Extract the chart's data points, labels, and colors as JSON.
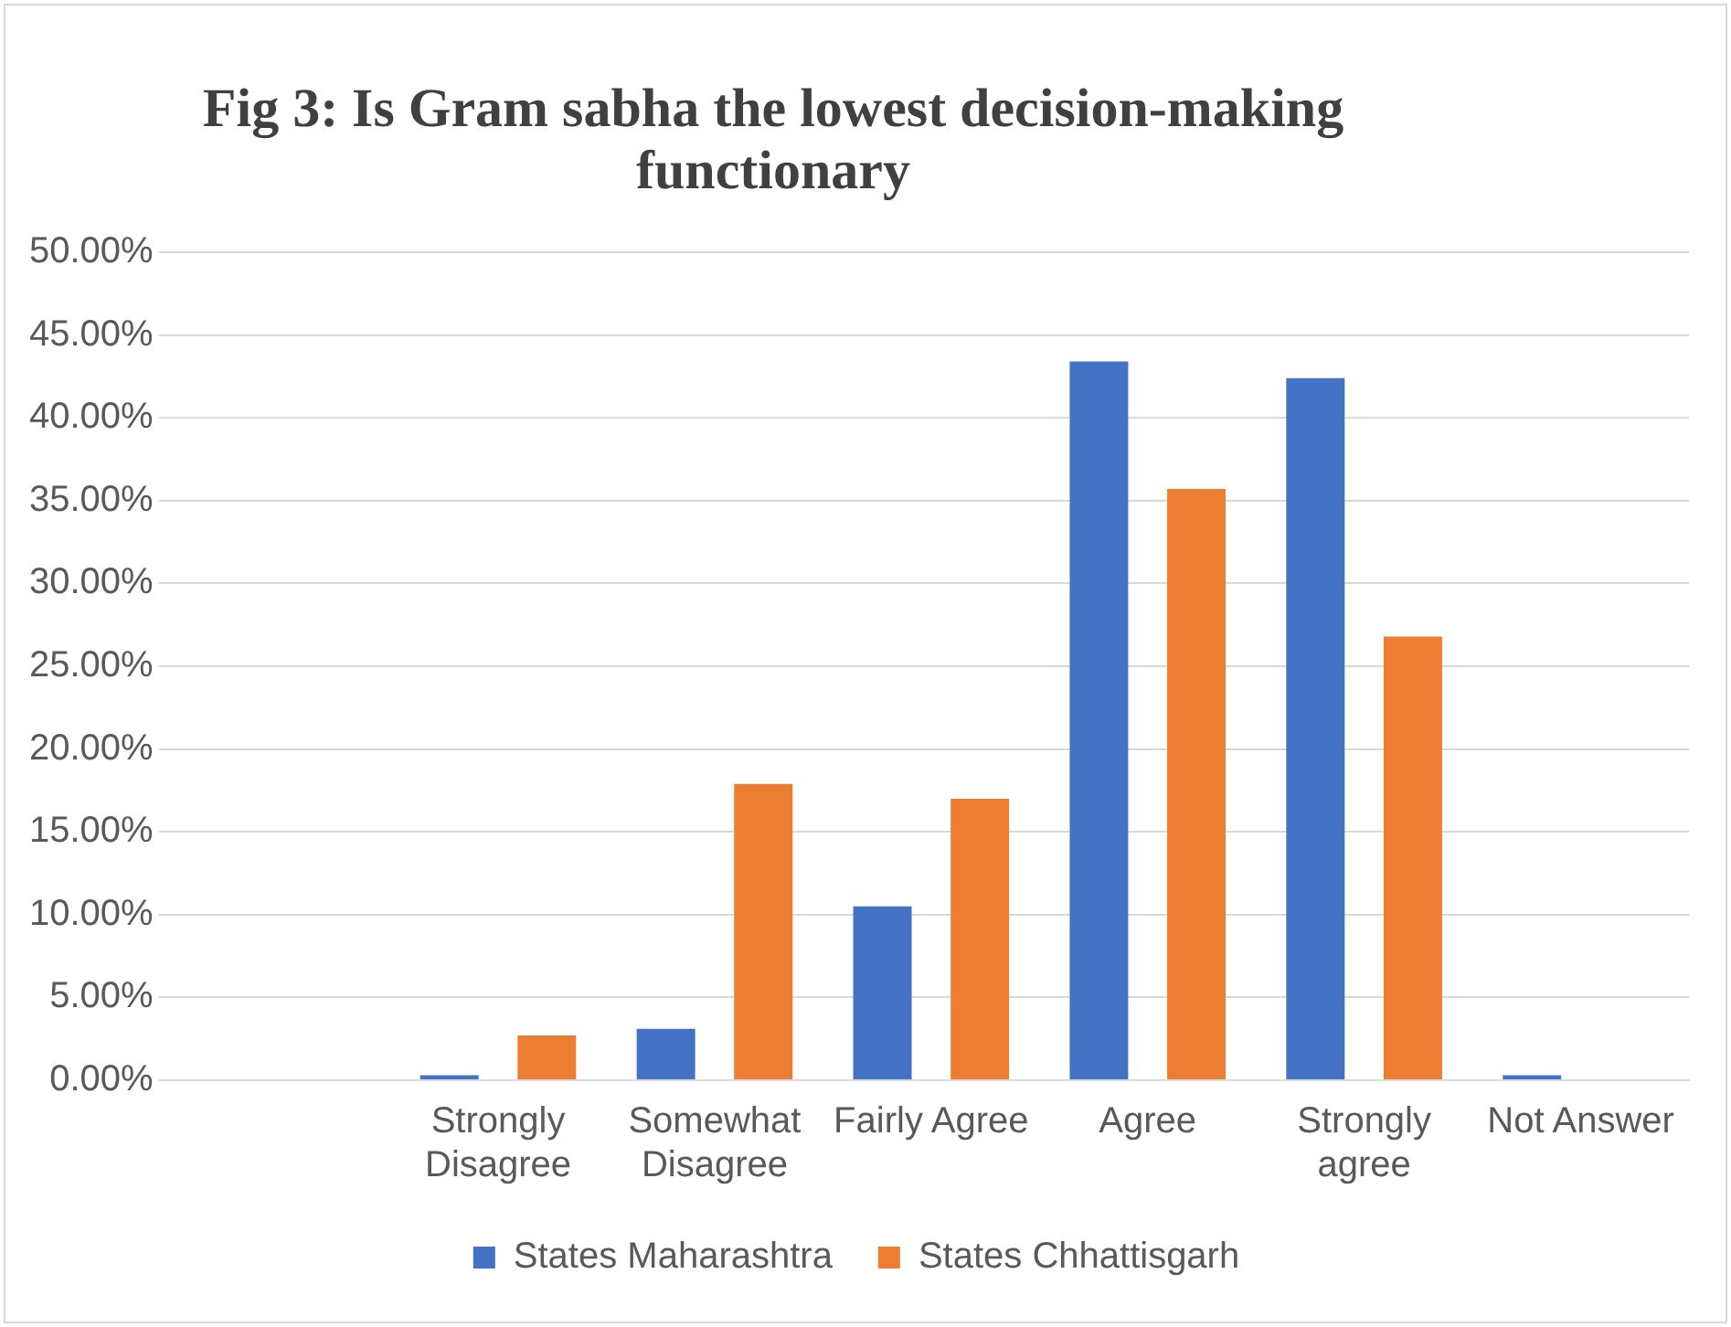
{
  "chart_data": {
    "type": "bar",
    "title": "Fig 3: Is Gram sabha  the lowest decision-making functionary",
    "categories": [
      null,
      "Strongly Disagree",
      "Somewhat Disagree",
      "Fairly Agree",
      "Agree",
      "Strongly agree",
      "Not Answer"
    ],
    "series": [
      {
        "name": "States Maharashtra",
        "color": "#4472c4",
        "values": [
          null,
          0.3,
          3.1,
          10.5,
          43.4,
          42.4,
          0.3
        ]
      },
      {
        "name": "States Chhattisgarh",
        "color": "#ed7d31",
        "values": [
          null,
          2.7,
          17.9,
          17.0,
          35.7,
          26.8,
          0
        ]
      }
    ],
    "ylim": [
      0,
      50
    ],
    "yticks": [
      {
        "value": 0,
        "label": "0.00%"
      },
      {
        "value": 5,
        "label": "5.00%"
      },
      {
        "value": 10,
        "label": "10.00%"
      },
      {
        "value": 15,
        "label": "15.00%"
      },
      {
        "value": 20,
        "label": "20.00%"
      },
      {
        "value": 25,
        "label": "25.00%"
      },
      {
        "value": 30,
        "label": "30.00%"
      },
      {
        "value": 35,
        "label": "35.00%"
      },
      {
        "value": 40,
        "label": "40.00%"
      },
      {
        "value": 45,
        "label": "45.00%"
      },
      {
        "value": 50,
        "label": "50.00%"
      }
    ],
    "grid": "y",
    "legend": "bottom"
  }
}
